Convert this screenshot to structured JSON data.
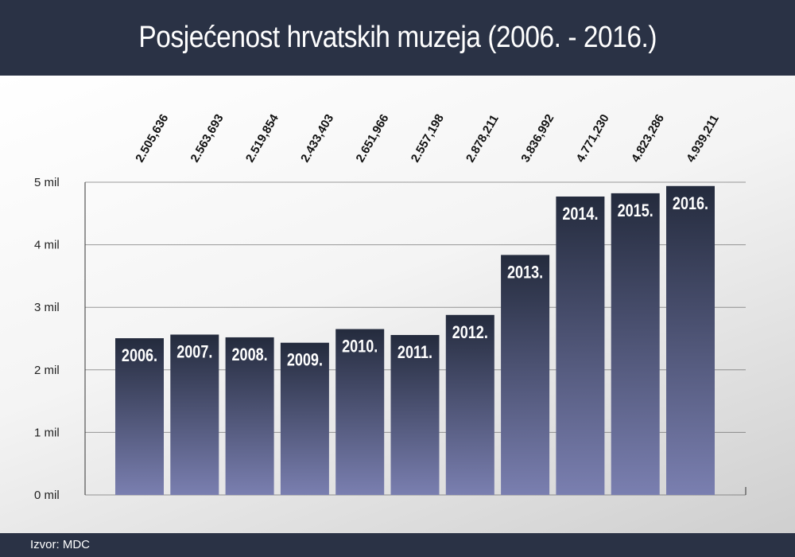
{
  "header": {
    "title": "Posjećenost hrvatskih muzeja (2006. - 2016.)"
  },
  "footer": {
    "source": "Izvor: MDC"
  },
  "colors": {
    "bar_top": "#242b3d",
    "bar_bottom": "#7a7fb0",
    "header_bg": "#2a3245",
    "grid": "#4a4a4a"
  },
  "chart_data": {
    "type": "bar",
    "title": "Posjećenost hrvatskih muzeja (2006. - 2016.)",
    "xlabel": "",
    "ylabel": "",
    "categories": [
      "2006.",
      "2007.",
      "2008.",
      "2009.",
      "2010.",
      "2011.",
      "2012.",
      "2013.",
      "2014.",
      "2015.",
      "2016."
    ],
    "values": [
      2505636,
      2563693,
      2519854,
      2433403,
      2651966,
      2557198,
      2878211,
      3836992,
      4771230,
      4823286,
      4939211
    ],
    "value_labels": [
      "2.505,636",
      "2.563,693",
      "2.519,854",
      "2.433,403",
      "2.651,966",
      "2.557,198",
      "2.878,211",
      "3.836,992",
      "4.771,230",
      "4.823,286",
      "4.939,211"
    ],
    "ylim": [
      0,
      5000000
    ],
    "yticks": [
      0,
      1000000,
      2000000,
      3000000,
      4000000,
      5000000
    ],
    "ytick_labels": [
      "0 mil",
      "1 mil",
      "2 mil",
      "3 mil",
      "4 mil",
      "5 mil"
    ],
    "grid": true,
    "legend": "none"
  }
}
